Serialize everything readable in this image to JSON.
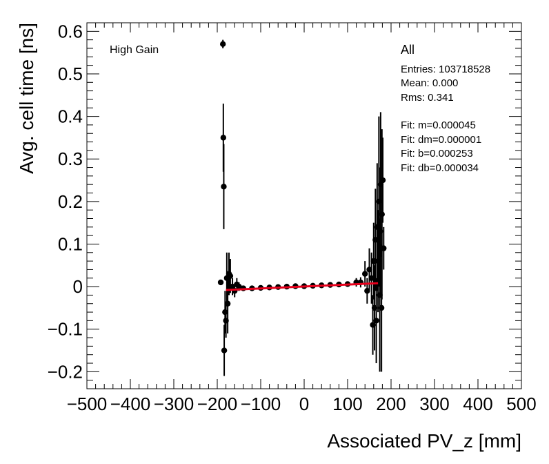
{
  "chart_data": {
    "type": "scatter",
    "title": "",
    "xlabel": "Associated PV_z [mm]",
    "ylabel": "Avg. cell time [ns]",
    "xlim": [
      -500,
      500
    ],
    "ylim": [
      -0.24,
      0.62
    ],
    "xticks": [
      -500,
      -400,
      -300,
      -200,
      -100,
      0,
      100,
      200,
      300,
      400,
      500
    ],
    "xtick_labels": [
      "−500",
      "−400",
      "−300",
      "−200",
      "−100",
      "0",
      "100",
      "200",
      "300",
      "400",
      "500"
    ],
    "yticks": [
      -0.2,
      -0.1,
      0,
      0.1,
      0.2,
      0.3,
      0.4,
      0.5,
      0.6
    ],
    "ytick_labels": [
      "−0.2",
      "−0.1",
      "0",
      "0.1",
      "0.2",
      "0.3",
      "0.4",
      "0.5",
      "0.6"
    ],
    "series": [
      {
        "name": "All",
        "kind": "points_with_errors",
        "x": [
          -192,
          -187,
          -186,
          -185,
          -184,
          -182,
          -180,
          -178,
          -176,
          -173,
          -170,
          -165,
          -160,
          -155,
          -150,
          -140,
          -120,
          -100,
          -80,
          -60,
          -40,
          -20,
          0,
          20,
          40,
          60,
          80,
          100,
          120,
          130,
          140,
          145,
          150,
          155,
          158,
          160,
          162,
          164,
          166,
          168,
          170,
          172,
          174,
          175,
          176,
          178,
          179,
          181,
          183
        ],
        "y": [
          0.01,
          0.57,
          0.35,
          0.235,
          -0.15,
          -0.06,
          -0.08,
          0.02,
          -0.04,
          0.03,
          0.025,
          0.0,
          -0.01,
          0.005,
          0.0,
          -0.004,
          -0.004,
          -0.003,
          -0.002,
          -0.001,
          0.0,
          0.001,
          0.001,
          0.002,
          0.003,
          0.004,
          0.005,
          0.006,
          0.01,
          0.01,
          0.03,
          -0.01,
          0.04,
          0.02,
          -0.09,
          0.06,
          -0.05,
          0.11,
          -0.08,
          0.14,
          0.06,
          0.2,
          -0.02,
          0.13,
          0.24,
          -0.05,
          0.17,
          0.25,
          0.09
        ],
        "err": [
          0.005,
          0.01,
          0.08,
          0.1,
          0.06,
          0.05,
          0.04,
          0.06,
          0.07,
          0.05,
          0.04,
          0.02,
          0.015,
          0.015,
          0.01,
          0.004,
          0.002,
          0.002,
          0.002,
          0.002,
          0.002,
          0.002,
          0.002,
          0.002,
          0.002,
          0.002,
          0.003,
          0.004,
          0.01,
          0.012,
          0.03,
          0.03,
          0.05,
          0.06,
          0.07,
          0.09,
          0.1,
          0.12,
          0.1,
          0.15,
          0.12,
          0.2,
          0.18,
          0.15,
          0.17,
          0.15,
          0.2,
          0.1,
          0.05
        ]
      },
      {
        "name": "Fit",
        "kind": "line",
        "color": "#e8001c",
        "x": [
          -180,
          170
        ],
        "y": [
          -0.008,
          0.008
        ]
      }
    ],
    "annotations": {
      "gain_label": "High Gain"
    },
    "legend": {
      "title": "All",
      "placement": "top-right",
      "stats": [
        "Entries: 103718528",
        "Mean: 0.000",
        "Rms: 0.341"
      ],
      "fit": [
        "Fit: m=0.000045",
        "Fit: dm=0.000001",
        "Fit: b=0.000253",
        "Fit: db=0.000034"
      ]
    },
    "grid": false
  }
}
